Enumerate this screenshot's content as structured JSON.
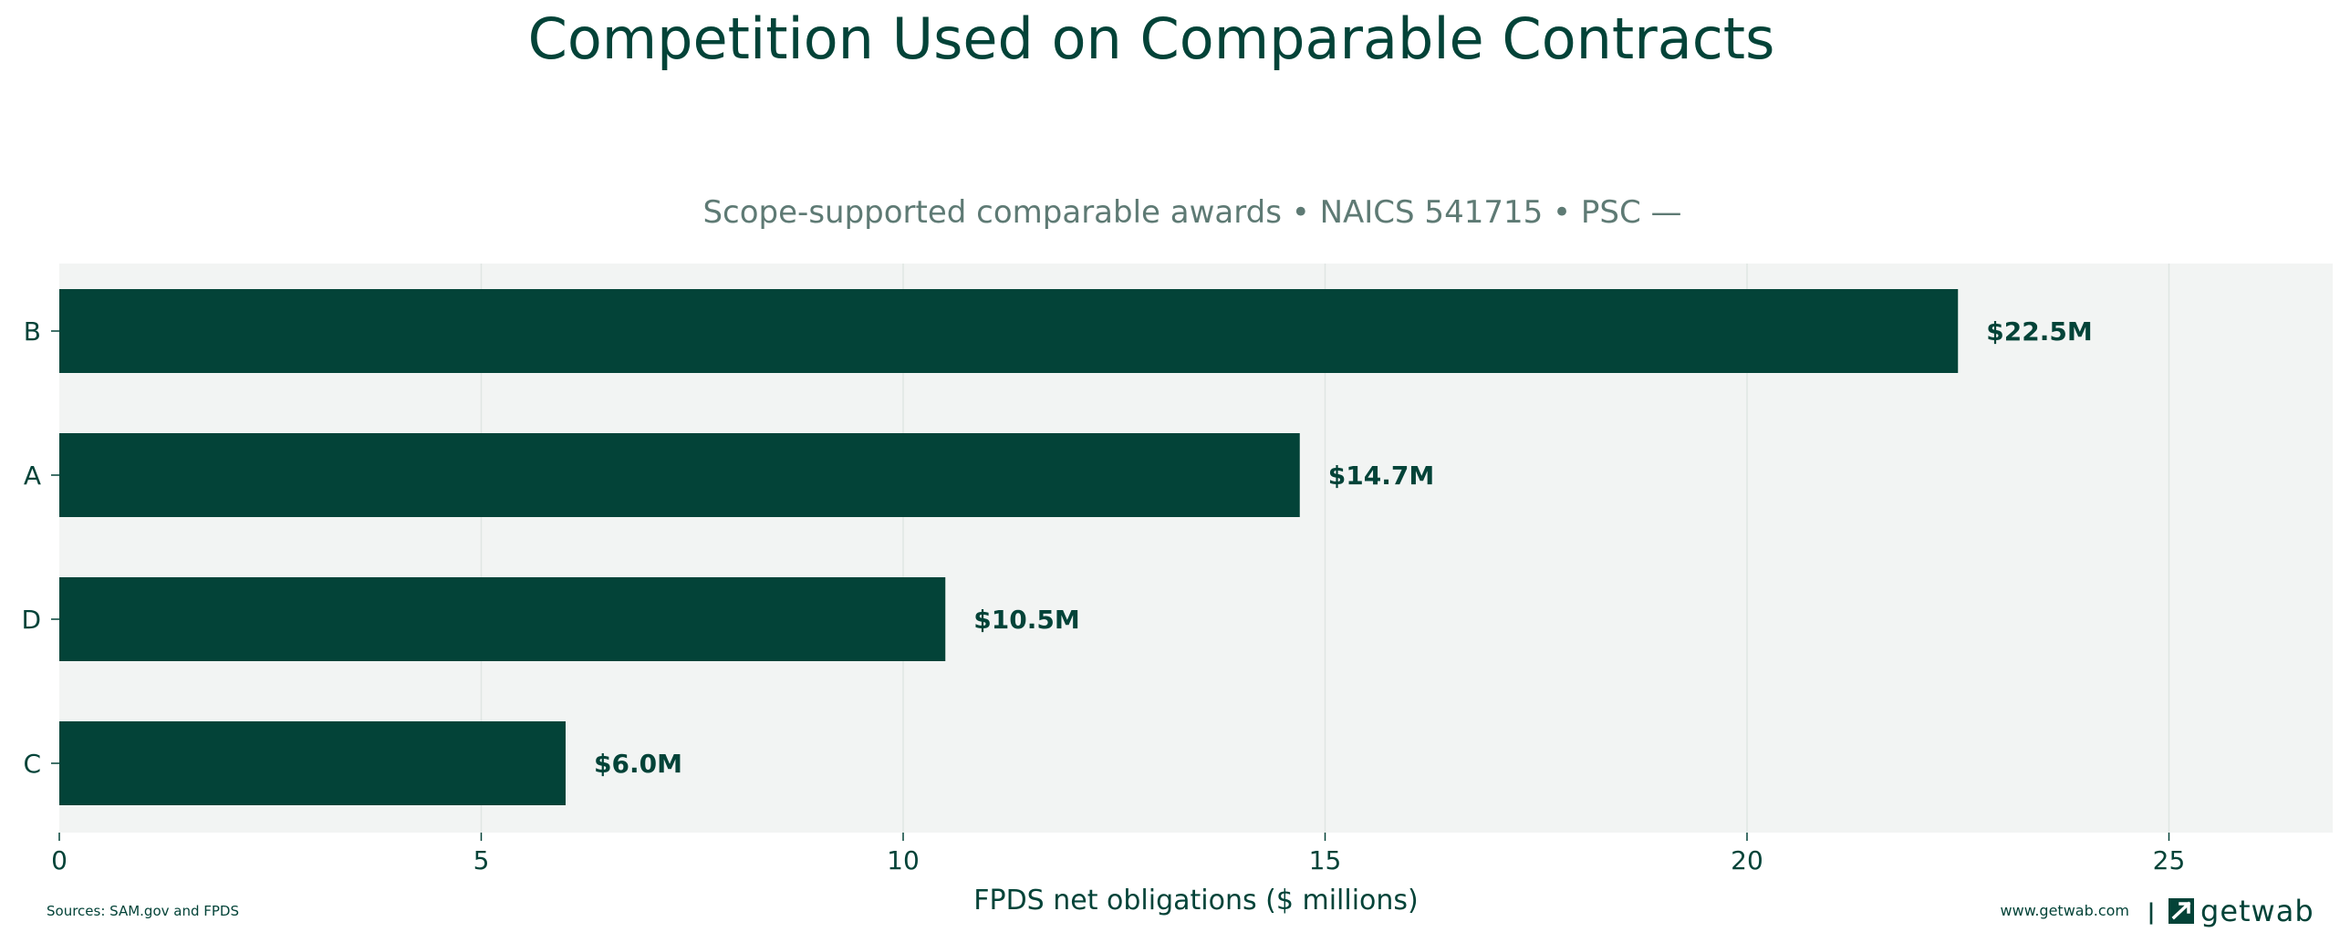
{
  "header": {
    "title": "Competition Used on Comparable Contracts",
    "subtitle": "Scope-supported comparable awards • NAICS 541715 • PSC —"
  },
  "footer": {
    "sources": "Sources: SAM.gov and FPDS",
    "website": "www.getwab.com",
    "separator": "|",
    "brand": "getwab"
  },
  "colors": {
    "bar": "#034338",
    "plot_background": "#f2f4f3",
    "grid": "#dfe6e3",
    "title": "#034338",
    "subtitle": "#5e7a74",
    "text": "#034338"
  },
  "chart_data": {
    "type": "bar",
    "orientation": "horizontal",
    "categories": [
      "B",
      "A",
      "D",
      "C"
    ],
    "values": [
      22.5,
      14.7,
      10.5,
      6.0
    ],
    "value_labels": [
      "$22.5M",
      "$14.7M",
      "$10.5M",
      "$6.0M"
    ],
    "xlabel": "FPDS net obligations ($ millions)",
    "ylabel": "",
    "xlim": [
      0,
      27
    ],
    "xticks": [
      0,
      5,
      10,
      15,
      20,
      25
    ],
    "xtick_labels": [
      "0",
      "5",
      "10",
      "15",
      "20",
      "25"
    ],
    "grid": "vertical"
  }
}
